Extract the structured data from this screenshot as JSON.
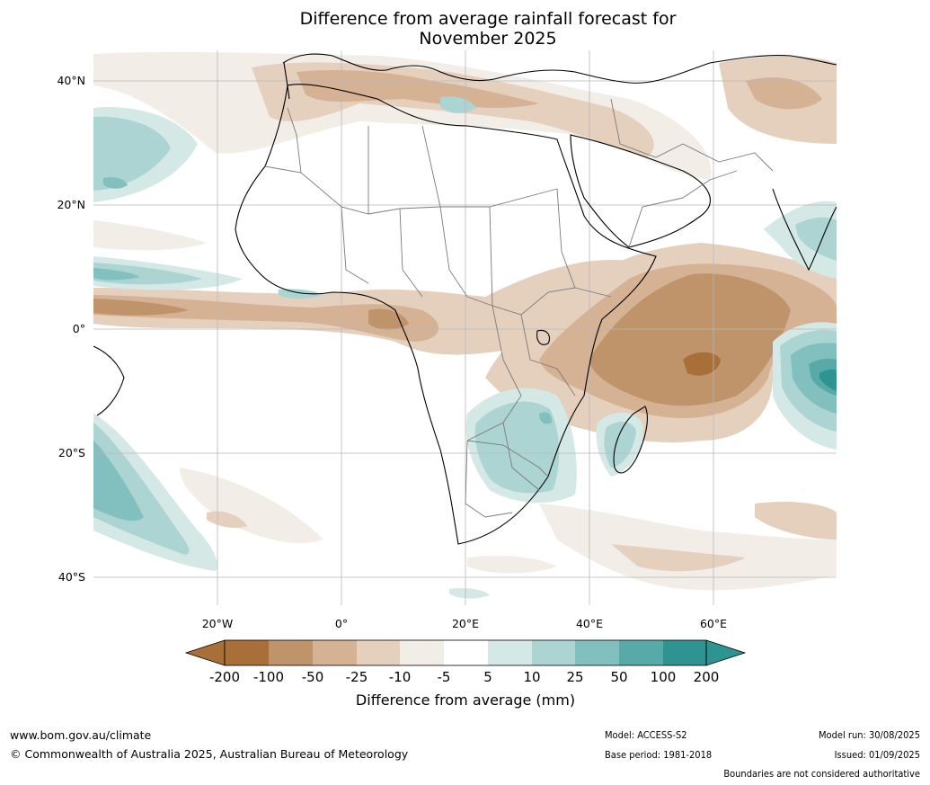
{
  "title_line1": "Difference from average rainfall forecast for",
  "title_line2": "November 2025",
  "lat_labels": [
    "40°N",
    "20°N",
    "0°",
    "20°S",
    "40°S"
  ],
  "lon_labels": [
    "20°W",
    "0°",
    "20°E",
    "40°E",
    "60°E"
  ],
  "colorbar": {
    "title": "Difference from average (mm)",
    "ticks": [
      "-200",
      "-100",
      "-50",
      "-25",
      "-10",
      "-5",
      "5",
      "10",
      "25",
      "50",
      "100",
      "200"
    ],
    "colors": [
      "#a87038",
      "#c0946a",
      "#d5b293",
      "#e5d0be",
      "#f2ede6",
      "#ffffff",
      "#d4e8e6",
      "#abd4d3",
      "#82bfbf",
      "#58aaa9",
      "#2e9491"
    ],
    "under_color": "#a87038",
    "over_color": "#2e9491"
  },
  "footer": {
    "website": "www.bom.gov.au/climate",
    "copyright": "© Commonwealth of Australia 2025, Australian Bureau of Meteorology",
    "model": "Model: ACCESS-S2",
    "base_period": "Base period: 1981-2018",
    "model_run": "Model run: 30/08/2025",
    "issued": "Issued: 01/09/2025",
    "disclaimer": "Boundaries are not considered authoritative"
  }
}
